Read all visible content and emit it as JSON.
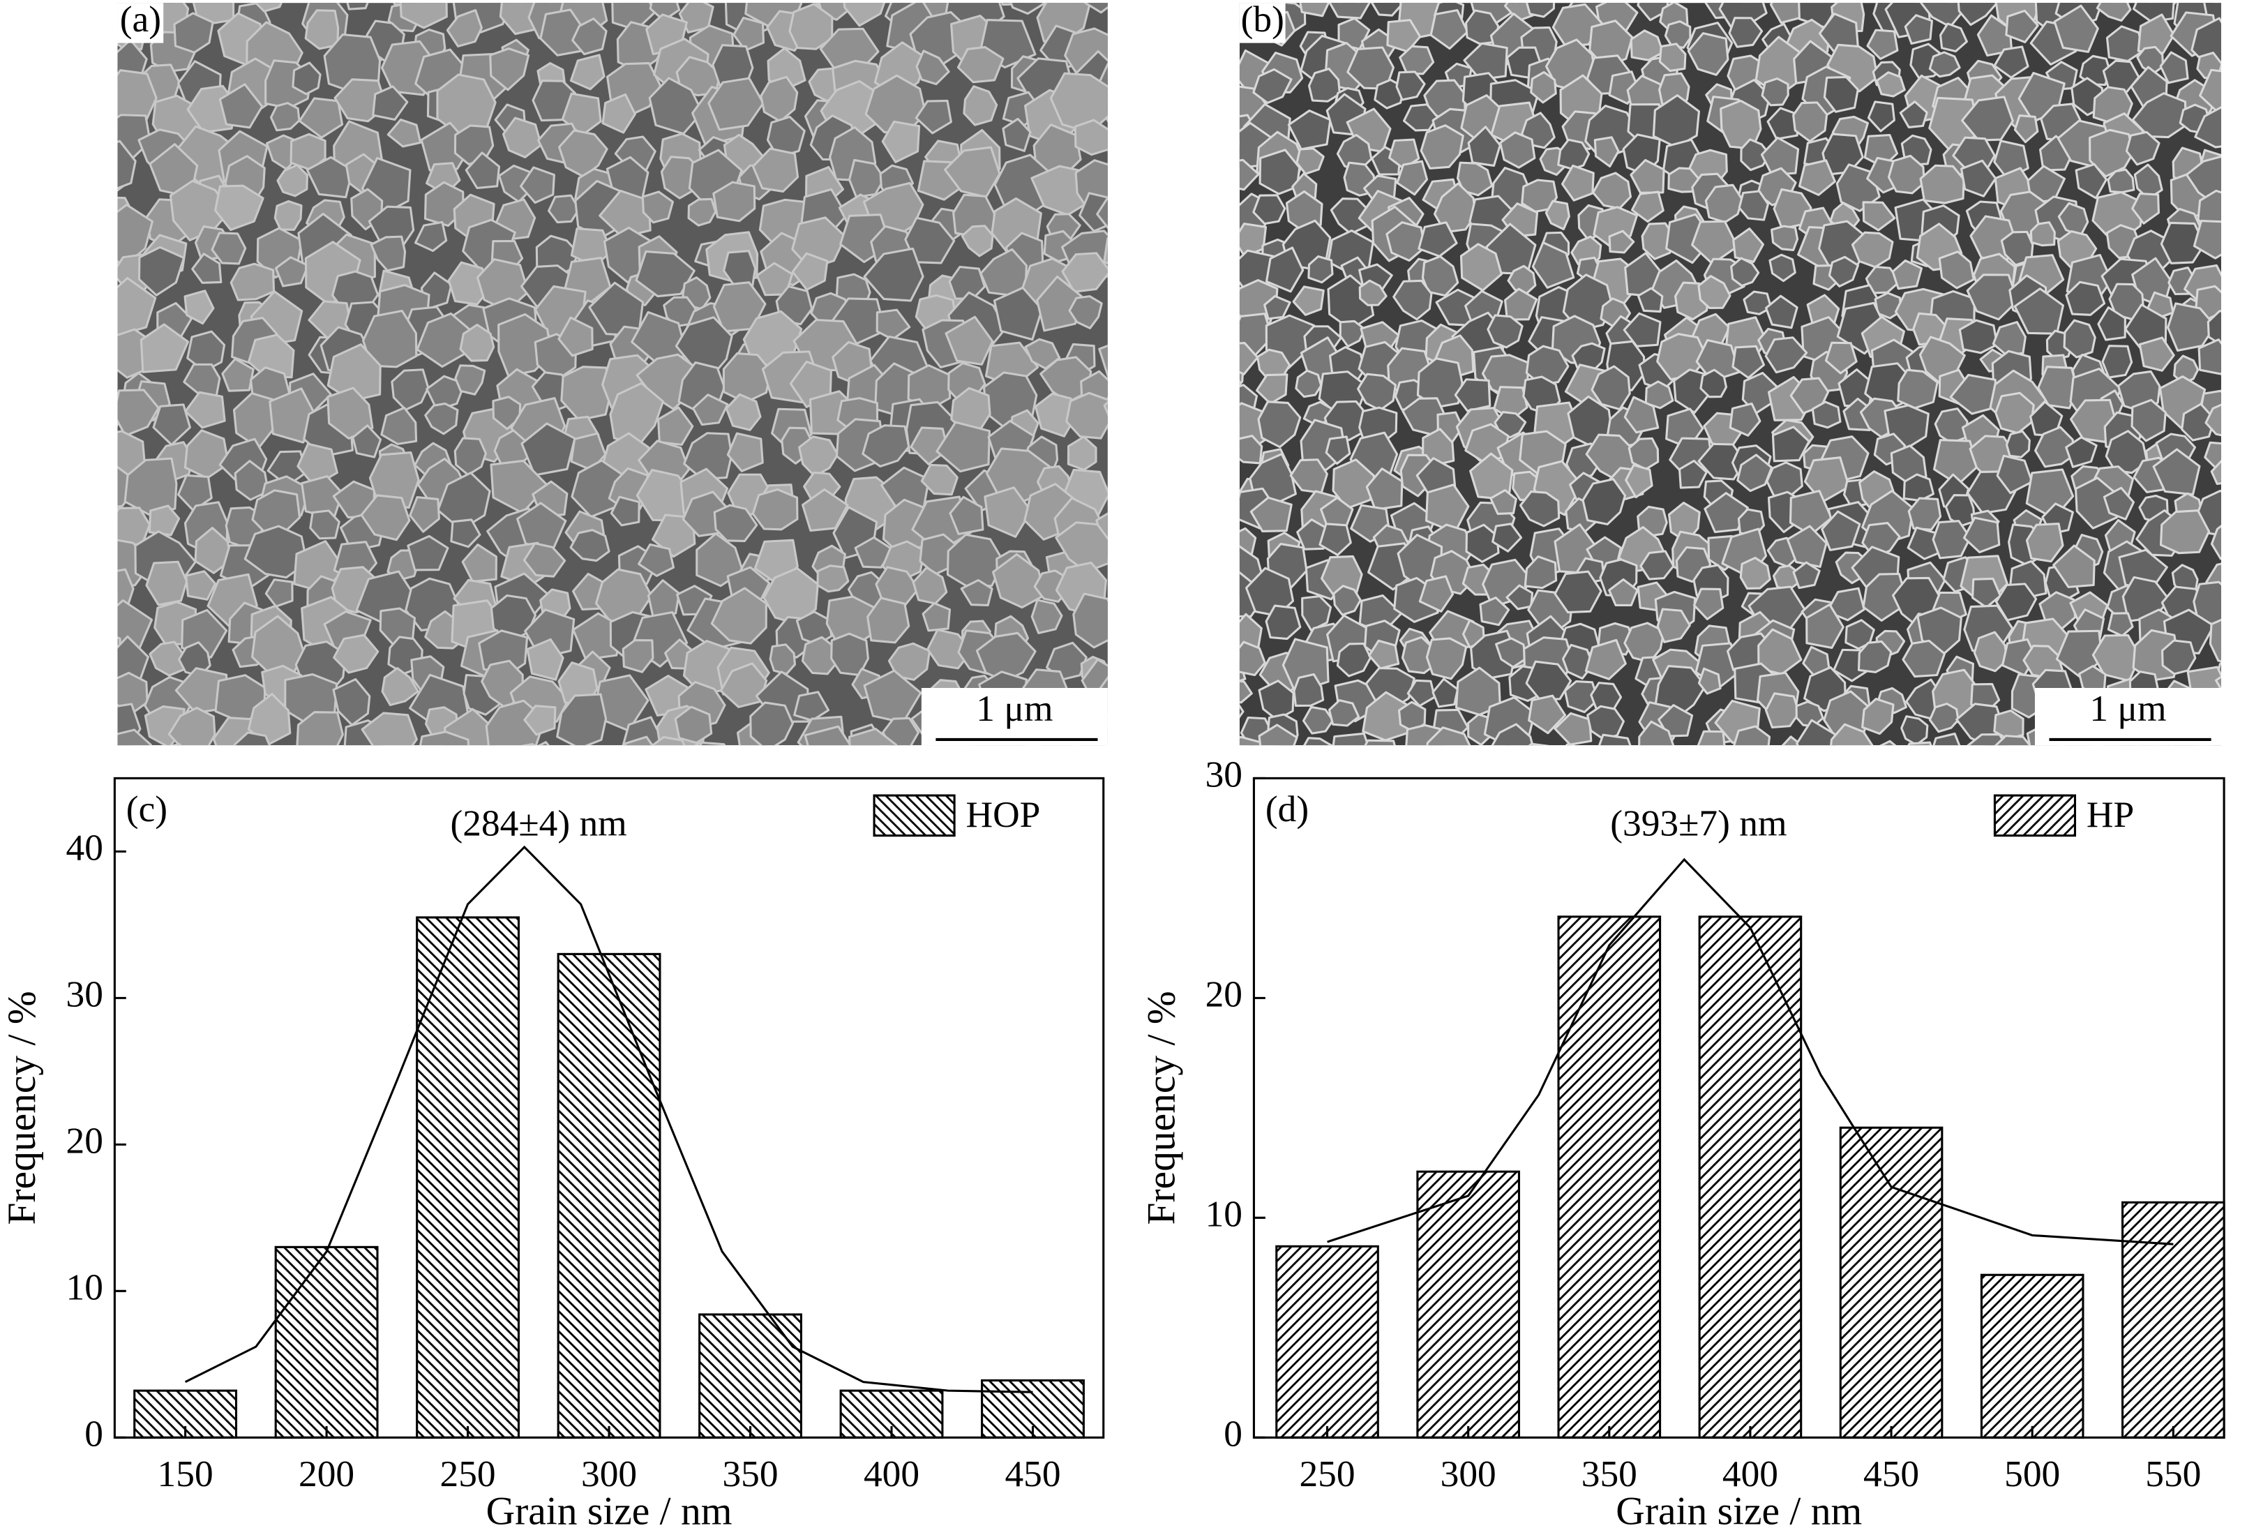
{
  "images": [
    {
      "label": "(a)",
      "scale_bar": "1 μm"
    },
    {
      "label": "(b)",
      "scale_bar": "1 μm"
    }
  ],
  "chart_data": [
    {
      "type": "bar",
      "panel_label": "(c)",
      "annotation": "(284±4) nm",
      "x_label": "Grain size / nm",
      "y_label": "Frequency / %",
      "x": [
        150,
        200,
        250,
        300,
        350,
        400,
        450
      ],
      "series": [
        {
          "name": "HOP",
          "color": "#000000",
          "hatch": "backslash",
          "values": [
            3.2,
            13,
            35.5,
            33,
            8.4,
            3.2,
            3.9
          ]
        }
      ],
      "fit": {
        "x": [
          150,
          175,
          200,
          225,
          250,
          270,
          290,
          315,
          340,
          365,
          390,
          420,
          450
        ],
        "values": [
          3.8,
          6.2,
          12.7,
          24.4,
          36.4,
          40.3,
          36.4,
          24.4,
          12.7,
          6.2,
          3.8,
          3.2,
          3.1
        ]
      },
      "xlim": [
        125,
        475
      ],
      "xticks": [
        150,
        200,
        250,
        300,
        350,
        400,
        450
      ],
      "ylim": [
        0,
        45
      ],
      "yticks": [
        0,
        10,
        20,
        30,
        40
      ],
      "legend": "upper right"
    },
    {
      "type": "bar",
      "panel_label": "(d)",
      "annotation": "(393±7) nm",
      "x_label": "Grain size / nm",
      "y_label": "Frequency / %",
      "x": [
        250,
        300,
        350,
        400,
        450,
        500,
        550
      ],
      "series": [
        {
          "name": "HP",
          "color": "#000000",
          "hatch": "slash",
          "values": [
            8.7,
            12.1,
            23.7,
            23.7,
            14.1,
            7.4,
            10.7
          ]
        }
      ],
      "fit": {
        "x": [
          250,
          300,
          325,
          350,
          376.6,
          400,
          425,
          450,
          500,
          550
        ],
        "values": [
          8.9,
          11.0,
          15.6,
          22.4,
          26.3,
          23.2,
          16.5,
          11.4,
          9.2,
          8.8
        ]
      },
      "xlim": [
        224,
        568
      ],
      "xticks": [
        250,
        300,
        350,
        400,
        450,
        500,
        550
      ],
      "ylim": [
        0,
        30
      ],
      "yticks": [
        0,
        10,
        20,
        30
      ],
      "legend": "upper right"
    }
  ]
}
